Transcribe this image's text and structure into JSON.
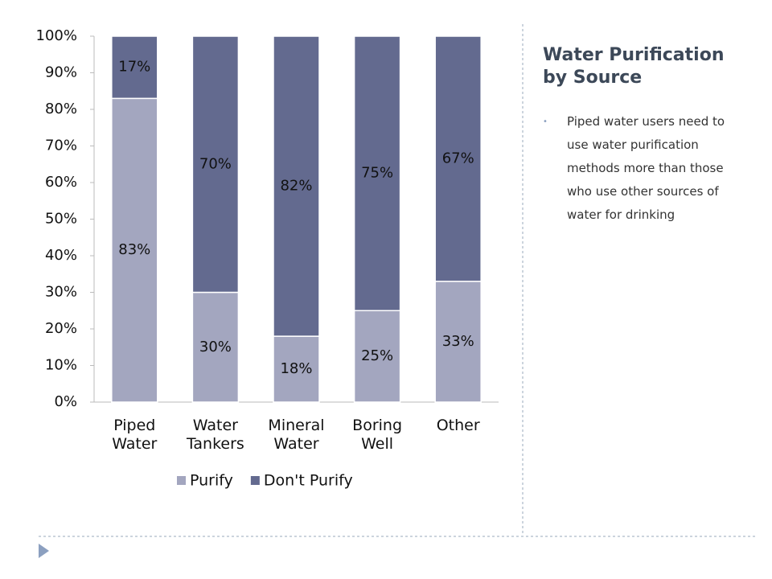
{
  "chart_data": {
    "type": "stacked_bar",
    "categories": [
      "Piped Water",
      "Water Tankers",
      "Mineral Water",
      "Boring Well",
      "Other"
    ],
    "series": [
      {
        "name": "Purify",
        "color": "#a3a6bf",
        "values": [
          83,
          30,
          18,
          25,
          33
        ],
        "value_labels": [
          "83%",
          "30%",
          "18%",
          "25%",
          "33%"
        ]
      },
      {
        "name": "Don't Purify",
        "color": "#636a8f",
        "values": [
          17,
          70,
          82,
          75,
          67
        ],
        "value_labels": [
          "17%",
          "70%",
          "82%",
          "75%",
          "67%"
        ]
      }
    ],
    "ylim": [
      0,
      100
    ],
    "yticks": [
      {
        "value": 0,
        "label": "0%"
      },
      {
        "value": 10,
        "label": "10%"
      },
      {
        "value": 20,
        "label": "20%"
      },
      {
        "value": 30,
        "label": "30%"
      },
      {
        "value": 40,
        "label": "40%"
      },
      {
        "value": 50,
        "label": "50%"
      },
      {
        "value": 60,
        "label": "60%"
      },
      {
        "value": 70,
        "label": "70%"
      },
      {
        "value": 80,
        "label": "80%"
      },
      {
        "value": 90,
        "label": "90%"
      },
      {
        "value": 100,
        "label": "100%"
      }
    ],
    "legend": "bottom"
  },
  "slide": {
    "title": "Water Purification by Source",
    "bullets": [
      "Piped water users need to use water purification methods more than those who use other sources of water for drinking"
    ]
  }
}
